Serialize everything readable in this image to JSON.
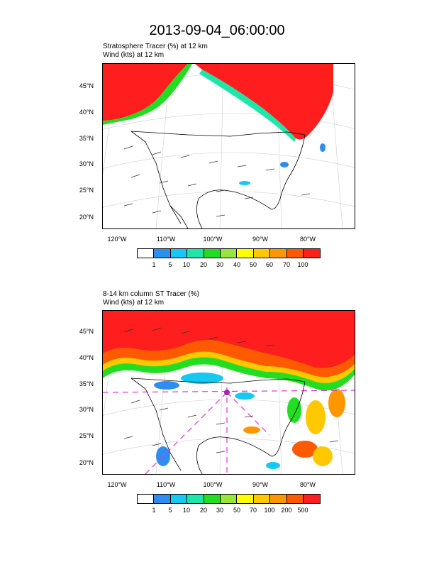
{
  "title": "2013-09-04_06:00:00",
  "panels": [
    {
      "line1": "Stratosphere Tracer   (%)     at   12 km",
      "line2": "Wind   (kts)     at   12 km",
      "lat_labels": [
        "45°N",
        "40°N",
        "35°N",
        "30°N",
        "25°N",
        "20°N"
      ],
      "lon_labels": [
        "120°W",
        "110°W",
        "100°W",
        "90°W",
        "80°W"
      ],
      "colorbar_labels": [
        "1",
        "5",
        "10",
        "20",
        "30",
        "40",
        "50",
        "60",
        "70",
        "100"
      ]
    },
    {
      "line1": "8-14 km column ST Tracer   (%)",
      "line2": "Wind   (kts)     at   12 km",
      "lat_labels": [
        "45°N",
        "40°N",
        "35°N",
        "30°N",
        "25°N",
        "20°N"
      ],
      "lon_labels": [
        "120°W",
        "110°W",
        "100°W",
        "90°W",
        "80°W"
      ],
      "colorbar_labels": [
        "1",
        "5",
        "10",
        "20",
        "30",
        "50",
        "70",
        "100",
        "200",
        "500"
      ]
    }
  ],
  "colorbar_colors": [
    "#ffffff",
    "#2e8ef0",
    "#17c8f0",
    "#1ee6a8",
    "#22dd22",
    "#96e63c",
    "#ffff00",
    "#ffc800",
    "#ff9600",
    "#ff5a00",
    "#ff1e1e"
  ]
}
